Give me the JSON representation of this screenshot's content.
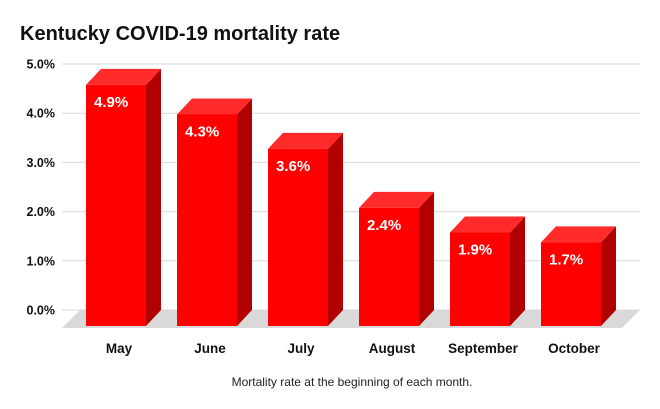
{
  "chart_data": {
    "type": "bar",
    "title": "Kentucky COVID-19 mortality rate",
    "xlabel": "Mortality rate at the beginning of each month.",
    "ylabel": "",
    "categories": [
      "May",
      "June",
      "July",
      "August",
      "September",
      "October"
    ],
    "values": [
      4.9,
      4.3,
      3.6,
      2.4,
      1.9,
      1.7
    ],
    "data_labels": [
      "4.9%",
      "4.3%",
      "3.6%",
      "2.4%",
      "1.9%",
      "1.7%"
    ],
    "y_ticks": [
      "0.0%",
      "1.0%",
      "2.0%",
      "3.0%",
      "4.0%",
      "5.0%"
    ],
    "ylim": [
      0,
      5
    ],
    "grid": true,
    "legend": "none",
    "style": "3d",
    "colors": {
      "bar_front": "#ff0000",
      "bar_side": "#b00000",
      "bar_top": "#ff2a2a",
      "grid": "#d9d9d9",
      "floor": "#d9d9d9"
    }
  }
}
